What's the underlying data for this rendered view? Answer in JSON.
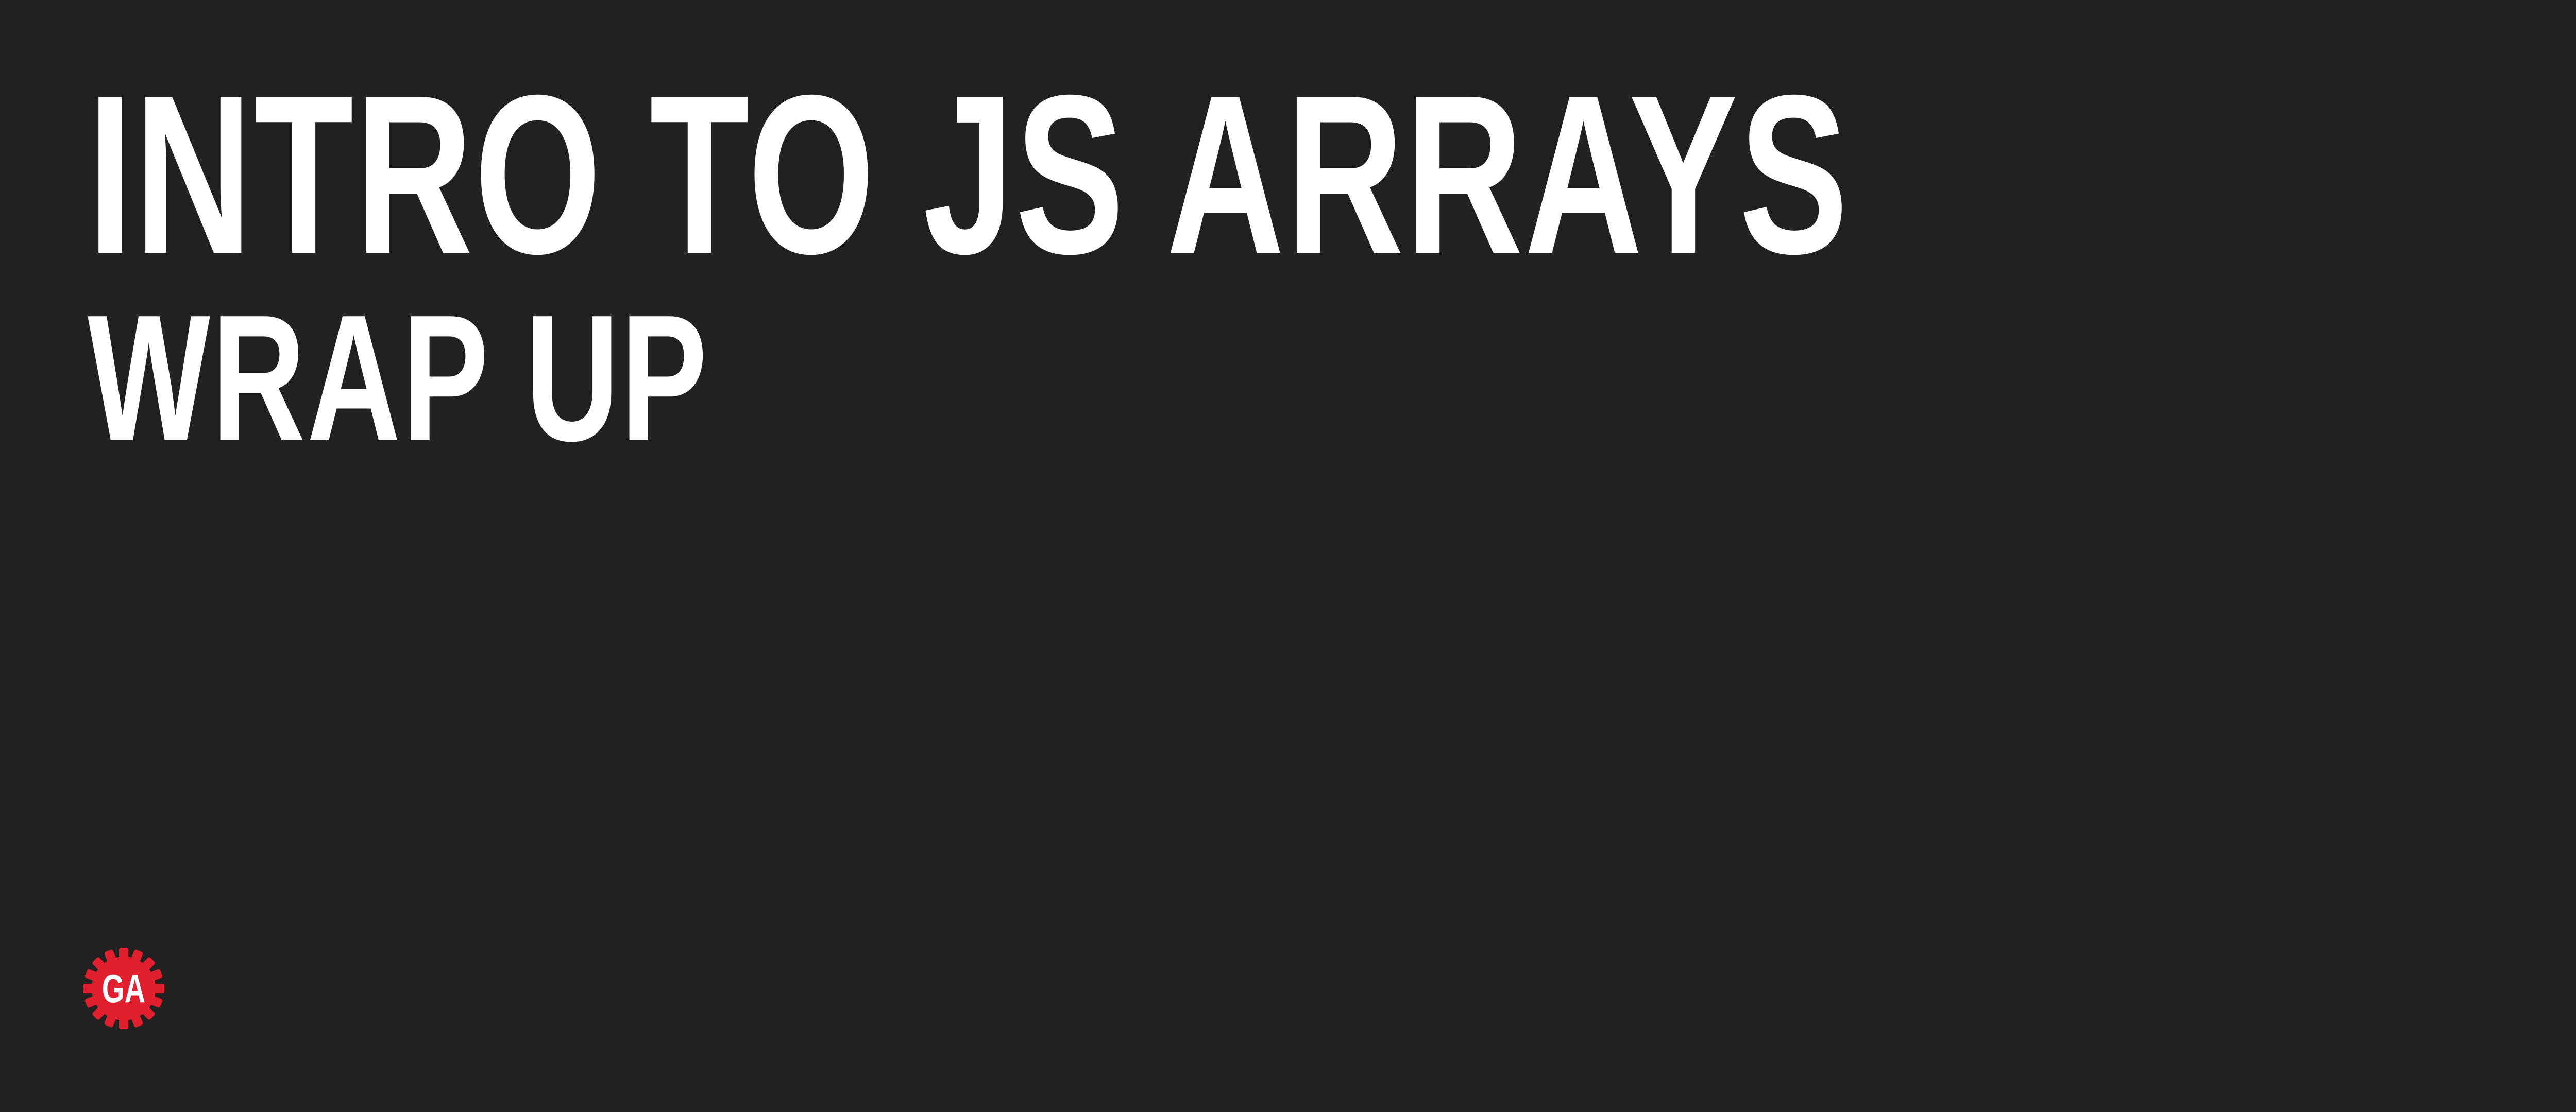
{
  "slide": {
    "title": "INTRO TO JS ARRAYS",
    "subtitle": "WRAP UP",
    "logo": {
      "text": "GA",
      "icon": "ga-gear-logo-icon",
      "color": "#e0202e"
    }
  },
  "colors": {
    "background": "#212121",
    "text": "#ffffff",
    "brand": "#e0202e"
  }
}
